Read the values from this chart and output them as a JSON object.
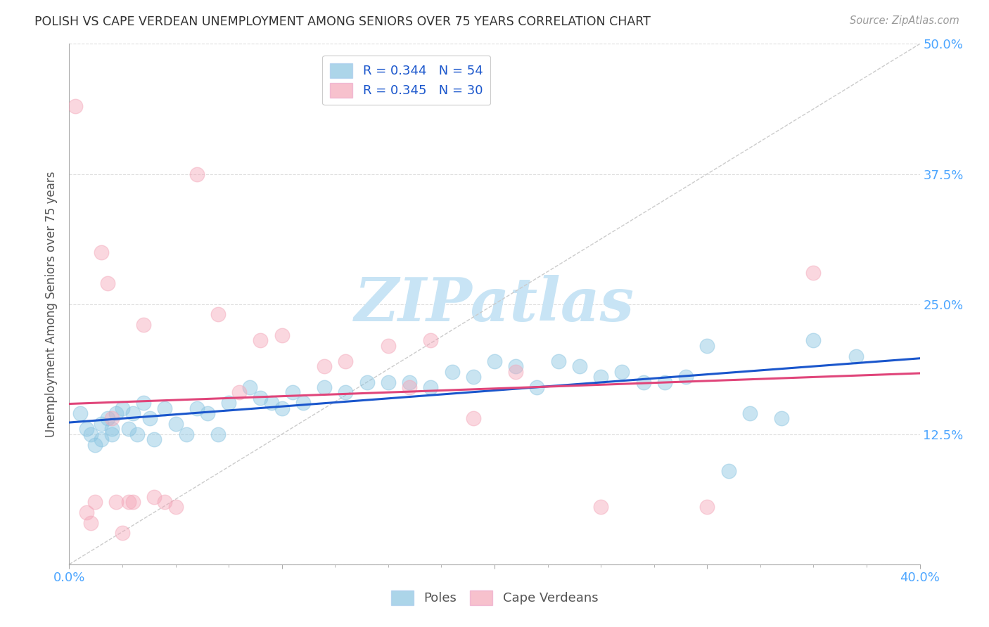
{
  "title": "POLISH VS CAPE VERDEAN UNEMPLOYMENT AMONG SENIORS OVER 75 YEARS CORRELATION CHART",
  "source": "Source: ZipAtlas.com",
  "ylabel": "Unemployment Among Seniors over 75 years",
  "xmin": 0.0,
  "xmax": 0.4,
  "ymin": 0.0,
  "ymax": 0.5,
  "yticks": [
    0.0,
    0.125,
    0.25,
    0.375,
    0.5
  ],
  "ytick_labels_right": [
    "",
    "12.5%",
    "25.0%",
    "37.5%",
    "50.0%"
  ],
  "blue_color": "#89c4e1",
  "pink_color": "#f4a7b9",
  "trend_blue": "#1a56cc",
  "trend_pink": "#e0457a",
  "diag_color": "#cccccc",
  "watermark_color": "#c8e4f5",
  "grid_color": "#dddddd",
  "legend_label_color": "#1a56cc",
  "tick_label_color": "#4da6ff",
  "title_color": "#333333",
  "source_color": "#999999",
  "ylabel_color": "#555555",
  "poles_x": [
    0.005,
    0.008,
    0.01,
    0.012,
    0.015,
    0.015,
    0.018,
    0.02,
    0.02,
    0.022,
    0.025,
    0.028,
    0.03,
    0.032,
    0.035,
    0.038,
    0.04,
    0.045,
    0.05,
    0.055,
    0.06,
    0.065,
    0.07,
    0.075,
    0.085,
    0.09,
    0.095,
    0.1,
    0.105,
    0.11,
    0.12,
    0.13,
    0.14,
    0.15,
    0.16,
    0.17,
    0.18,
    0.19,
    0.2,
    0.21,
    0.22,
    0.23,
    0.24,
    0.25,
    0.26,
    0.27,
    0.28,
    0.29,
    0.3,
    0.31,
    0.32,
    0.335,
    0.35,
    0.37
  ],
  "poles_y": [
    0.145,
    0.13,
    0.125,
    0.115,
    0.135,
    0.12,
    0.14,
    0.13,
    0.125,
    0.145,
    0.15,
    0.13,
    0.145,
    0.125,
    0.155,
    0.14,
    0.12,
    0.15,
    0.135,
    0.125,
    0.15,
    0.145,
    0.125,
    0.155,
    0.17,
    0.16,
    0.155,
    0.15,
    0.165,
    0.155,
    0.17,
    0.165,
    0.175,
    0.175,
    0.175,
    0.17,
    0.185,
    0.18,
    0.195,
    0.19,
    0.17,
    0.195,
    0.19,
    0.18,
    0.185,
    0.175,
    0.175,
    0.18,
    0.21,
    0.09,
    0.145,
    0.14,
    0.215,
    0.2
  ],
  "verdeans_x": [
    0.003,
    0.008,
    0.01,
    0.012,
    0.015,
    0.018,
    0.02,
    0.022,
    0.025,
    0.028,
    0.03,
    0.035,
    0.04,
    0.045,
    0.05,
    0.06,
    0.07,
    0.08,
    0.09,
    0.1,
    0.12,
    0.13,
    0.15,
    0.16,
    0.17,
    0.19,
    0.21,
    0.25,
    0.3,
    0.35
  ],
  "verdeans_y": [
    0.44,
    0.05,
    0.04,
    0.06,
    0.3,
    0.27,
    0.14,
    0.06,
    0.03,
    0.06,
    0.06,
    0.23,
    0.065,
    0.06,
    0.055,
    0.375,
    0.24,
    0.165,
    0.215,
    0.22,
    0.19,
    0.195,
    0.21,
    0.17,
    0.215,
    0.14,
    0.185,
    0.055,
    0.055,
    0.28
  ]
}
